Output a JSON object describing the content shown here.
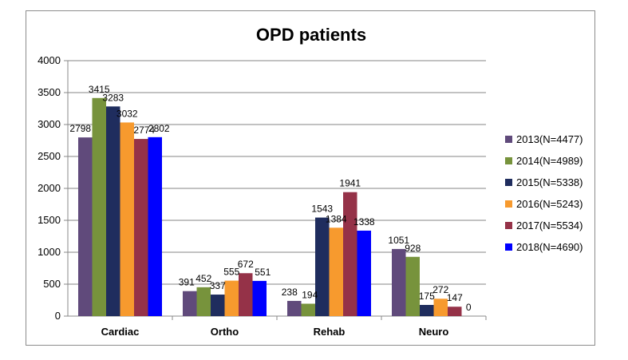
{
  "chart_data": {
    "type": "bar",
    "title": "OPD patients",
    "categories": [
      "Cardiac",
      "Ortho",
      "Rehab",
      "Neuro"
    ],
    "ylim": [
      0,
      4000
    ],
    "yticks": [
      0,
      500,
      1000,
      1500,
      2000,
      2500,
      3000,
      3500,
      4000
    ],
    "grid": true,
    "legend_position": "right",
    "series": [
      {
        "name": "2013(N=4477)",
        "color": "#604a7b",
        "values": [
          2798,
          391,
          238,
          1051
        ]
      },
      {
        "name": "2014(N=4989)",
        "color": "#77933c",
        "values": [
          3415,
          452,
          194,
          928
        ]
      },
      {
        "name": "2015(N=5338)",
        "color": "#1f2d5e",
        "values": [
          3283,
          337,
          1543,
          175
        ]
      },
      {
        "name": "2016(N=5243)",
        "color": "#f79a2e",
        "values": [
          3032,
          555,
          1384,
          272
        ]
      },
      {
        "name": "2017(N=5534)",
        "color": "#953248",
        "values": [
          2774,
          672,
          1941,
          147
        ]
      },
      {
        "name": "2018(N=4690)",
        "color": "#0000ff",
        "values": [
          2802,
          551,
          1338,
          0
        ]
      }
    ]
  }
}
